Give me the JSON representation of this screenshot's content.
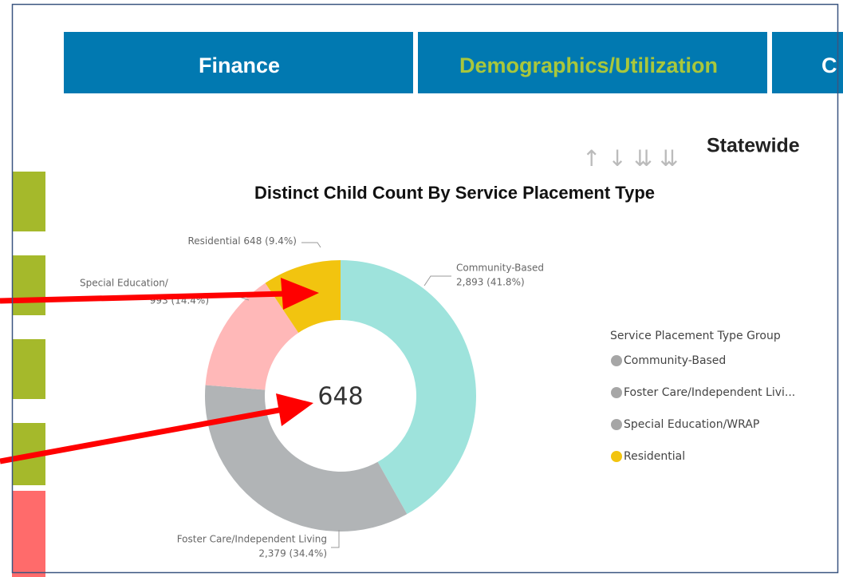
{
  "tabs": [
    "Finance",
    "Demographics/Utilization",
    "C"
  ],
  "section_title": "Statewide",
  "chart_data": {
    "type": "donut",
    "title": "Distinct Child Count By Service Placement Type",
    "legend_title": "Service Placement Type Group",
    "categories": [
      "Community-Based",
      "Foster Care/Independent Livi...",
      "Special Education/WRAP",
      "Residential"
    ],
    "label_names": [
      "Community-Based",
      "Foster Care/Independent Living",
      "Special Education/",
      "Residential"
    ],
    "values": [
      2893,
      2379,
      993,
      648
    ],
    "value_labels": [
      "2,893 (41.8%)",
      "2,379 (34.4%)",
      "993 (14.4%)",
      "648 (9.4%)"
    ],
    "colors": [
      "#9ee3dc",
      "#b1b4b6",
      "#ffb8b8",
      "#f2c40f"
    ],
    "legend_colors": [
      "#a6a6a6",
      "#a6a6a6",
      "#a6a6a6",
      "#f2c40f"
    ],
    "center_label": 648
  }
}
